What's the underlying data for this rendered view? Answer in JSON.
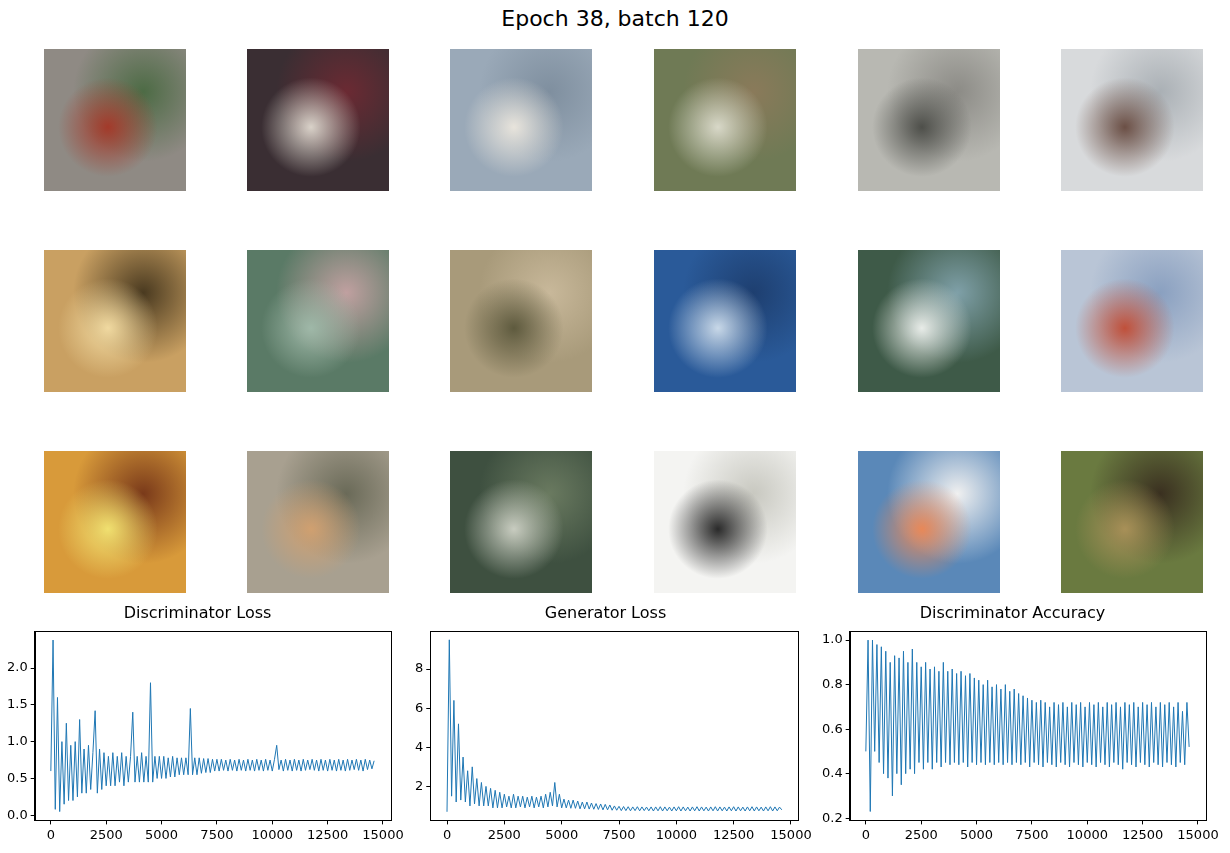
{
  "title": "Epoch 38, batch 120",
  "chart_data": [
    {
      "type": "line",
      "title": "Discriminator Loss",
      "grid": false,
      "color": "#1f77b4",
      "line_style": "solid",
      "x": [
        0,
        100,
        200,
        300,
        400,
        500,
        600,
        700,
        800,
        900,
        1000,
        1100,
        1200,
        1300,
        1400,
        1500,
        1600,
        1700,
        1800,
        1900,
        2000,
        2100,
        2200,
        2300,
        2400,
        2500,
        2600,
        2700,
        2800,
        2900,
        3000,
        3100,
        3200,
        3300,
        3400,
        3500,
        3600,
        3700,
        3800,
        3900,
        4000,
        4100,
        4200,
        4300,
        4400,
        4500,
        4600,
        4700,
        4800,
        4900,
        5000,
        5100,
        5200,
        5300,
        5400,
        5500,
        5600,
        5700,
        5800,
        5900,
        6000,
        6100,
        6200,
        6300,
        6400,
        6500,
        6600,
        6700,
        6800,
        6900,
        7000,
        7100,
        7200,
        7300,
        7400,
        7500,
        7600,
        7700,
        7800,
        7900,
        8000,
        8100,
        8200,
        8300,
        8400,
        8500,
        8600,
        8700,
        8800,
        8900,
        9000,
        9100,
        9200,
        9300,
        9400,
        9500,
        9600,
        9700,
        9800,
        9900,
        10000,
        10100,
        10200,
        10300,
        10400,
        10500,
        10600,
        10700,
        10800,
        10900,
        11000,
        11100,
        11200,
        11300,
        11400,
        11500,
        11600,
        11700,
        11800,
        11900,
        12000,
        12100,
        12200,
        12300,
        12400,
        12500,
        12600,
        12700,
        12800,
        12900,
        13000,
        13100,
        13200,
        13300,
        13400,
        13500,
        13600,
        13700,
        13800,
        13900,
        14000,
        14100,
        14200,
        14300,
        14400,
        14500,
        14600
      ],
      "values": [
        0.6,
        2.38,
        0.08,
        1.6,
        0.05,
        1.0,
        0.15,
        1.25,
        0.2,
        0.95,
        0.2,
        1.0,
        0.25,
        1.3,
        0.3,
        0.9,
        0.3,
        0.95,
        0.35,
        0.85,
        1.42,
        0.3,
        0.9,
        0.35,
        0.85,
        0.4,
        0.8,
        0.4,
        0.85,
        0.4,
        0.8,
        0.45,
        0.85,
        0.4,
        0.8,
        0.45,
        0.8,
        1.4,
        0.45,
        0.8,
        0.45,
        0.85,
        0.45,
        0.8,
        0.45,
        1.8,
        0.45,
        0.8,
        0.5,
        0.8,
        0.5,
        0.8,
        0.5,
        0.78,
        0.52,
        0.8,
        0.52,
        0.78,
        0.55,
        0.78,
        0.55,
        0.78,
        0.55,
        1.45,
        0.55,
        0.78,
        0.55,
        0.78,
        0.57,
        0.77,
        0.58,
        0.77,
        0.58,
        0.76,
        0.6,
        0.76,
        0.6,
        0.76,
        0.61,
        0.75,
        0.6,
        0.76,
        0.61,
        0.75,
        0.6,
        0.76,
        0.61,
        0.75,
        0.6,
        0.76,
        0.61,
        0.75,
        0.6,
        0.76,
        0.61,
        0.75,
        0.6,
        0.76,
        0.61,
        0.75,
        0.6,
        0.76,
        0.95,
        0.62,
        0.75,
        0.6,
        0.76,
        0.61,
        0.75,
        0.6,
        0.76,
        0.61,
        0.75,
        0.6,
        0.76,
        0.61,
        0.75,
        0.62,
        0.76,
        0.61,
        0.75,
        0.6,
        0.76,
        0.61,
        0.75,
        0.6,
        0.76,
        0.61,
        0.75,
        0.6,
        0.76,
        0.61,
        0.75,
        0.6,
        0.76,
        0.61,
        0.75,
        0.62,
        0.76,
        0.61,
        0.75,
        0.6,
        0.76,
        0.62,
        0.75,
        0.63,
        0.74
      ],
      "xlim": [
        -730,
        15330
      ],
      "xticks": [
        0,
        2500,
        5000,
        7500,
        10000,
        12500,
        15000
      ],
      "ylim": [
        -0.07,
        2.5
      ],
      "yticks": [
        {
          "value": 0,
          "label": "0.0"
        },
        {
          "value": 0.5,
          "label": "0.5"
        },
        {
          "value": 1,
          "label": "1.0"
        },
        {
          "value": 1.5,
          "label": "1.5"
        },
        {
          "value": 2,
          "label": "2.0"
        }
      ]
    },
    {
      "type": "line",
      "title": "Generator Loss",
      "grid": false,
      "color": "#1f77b4",
      "line_style": "solid",
      "x": [
        0,
        100,
        200,
        300,
        400,
        500,
        600,
        700,
        800,
        900,
        1000,
        1100,
        1200,
        1300,
        1400,
        1500,
        1600,
        1700,
        1800,
        1900,
        2000,
        2100,
        2200,
        2300,
        2400,
        2500,
        2600,
        2700,
        2800,
        2900,
        3000,
        3100,
        3200,
        3300,
        3400,
        3500,
        3600,
        3700,
        3800,
        3900,
        4000,
        4100,
        4200,
        4300,
        4400,
        4500,
        4600,
        4700,
        4800,
        4900,
        5000,
        5100,
        5200,
        5300,
        5400,
        5500,
        5600,
        5700,
        5800,
        5900,
        6000,
        6100,
        6200,
        6300,
        6400,
        6500,
        6600,
        6700,
        6800,
        6900,
        7000,
        7100,
        7200,
        7300,
        7400,
        7500,
        7600,
        7700,
        7800,
        7900,
        8000,
        8100,
        8200,
        8300,
        8400,
        8500,
        8600,
        8700,
        8800,
        8900,
        9000,
        9100,
        9200,
        9300,
        9400,
        9500,
        9600,
        9700,
        9800,
        9900,
        10000,
        10100,
        10200,
        10300,
        10400,
        10500,
        10600,
        10700,
        10800,
        10900,
        11000,
        11100,
        11200,
        11300,
        11400,
        11500,
        11600,
        11700,
        11800,
        11900,
        12000,
        12100,
        12200,
        12300,
        12400,
        12500,
        12600,
        12700,
        12800,
        12900,
        13000,
        13100,
        13200,
        13300,
        13400,
        13500,
        13600,
        13700,
        13800,
        13900,
        14000,
        14100,
        14200,
        14300,
        14400,
        14500,
        14600
      ],
      "values": [
        0.7,
        9.5,
        1.5,
        6.4,
        1.2,
        5.2,
        1.3,
        3.5,
        1.2,
        2.8,
        1.0,
        3.0,
        1.1,
        2.4,
        1.0,
        2.2,
        1.0,
        2.0,
        1.0,
        1.9,
        0.9,
        1.8,
        0.9,
        1.7,
        0.9,
        1.6,
        0.95,
        1.5,
        0.9,
        1.6,
        0.9,
        1.5,
        0.95,
        1.5,
        0.9,
        1.45,
        0.95,
        1.5,
        0.9,
        1.45,
        0.95,
        1.5,
        0.9,
        1.6,
        0.95,
        1.7,
        1.0,
        2.2,
        0.95,
        1.6,
        0.9,
        1.35,
        0.9,
        1.3,
        0.88,
        1.3,
        0.88,
        1.25,
        0.85,
        1.2,
        0.85,
        1.2,
        0.84,
        1.15,
        0.83,
        1.12,
        0.82,
        1.1,
        0.8,
        1.08,
        0.8,
        1.05,
        0.78,
        1.0,
        0.78,
        0.98,
        0.76,
        0.97,
        0.76,
        0.96,
        0.75,
        0.95,
        0.76,
        0.96,
        0.75,
        0.95,
        0.76,
        0.94,
        0.75,
        0.95,
        0.74,
        0.95,
        0.75,
        0.96,
        0.74,
        0.95,
        0.75,
        0.94,
        0.74,
        0.95,
        0.75,
        0.96,
        0.74,
        0.95,
        0.75,
        0.94,
        0.74,
        0.95,
        0.75,
        0.96,
        0.74,
        0.95,
        0.75,
        0.94,
        0.74,
        0.95,
        0.75,
        0.96,
        0.74,
        0.95,
        0.75,
        0.94,
        0.74,
        0.95,
        0.75,
        0.96,
        0.74,
        0.95,
        0.75,
        0.94,
        0.74,
        0.95,
        0.75,
        0.96,
        0.74,
        0.95,
        0.75,
        0.94,
        0.74,
        0.95,
        0.75,
        0.96,
        0.74,
        0.95,
        0.75,
        0.94,
        0.8
      ],
      "xlim": [
        -730,
        15330
      ],
      "xticks": [
        0,
        2500,
        5000,
        7500,
        10000,
        12500,
        15000
      ],
      "ylim": [
        0.26,
        9.94
      ],
      "yticks": [
        2,
        4,
        6,
        8
      ]
    },
    {
      "type": "line",
      "title": "Discriminator Accuracy",
      "grid": false,
      "color": "#1f77b4",
      "line_style": "solid",
      "x": [
        0,
        100,
        200,
        300,
        400,
        500,
        600,
        700,
        800,
        900,
        1000,
        1100,
        1200,
        1300,
        1400,
        1500,
        1600,
        1700,
        1800,
        1900,
        2000,
        2100,
        2200,
        2300,
        2400,
        2500,
        2600,
        2700,
        2800,
        2900,
        3000,
        3100,
        3200,
        3300,
        3400,
        3500,
        3600,
        3700,
        3800,
        3900,
        4000,
        4100,
        4200,
        4300,
        4400,
        4500,
        4600,
        4700,
        4800,
        4900,
        5000,
        5100,
        5200,
        5300,
        5400,
        5500,
        5600,
        5700,
        5800,
        5900,
        6000,
        6100,
        6200,
        6300,
        6400,
        6500,
        6600,
        6700,
        6800,
        6900,
        7000,
        7100,
        7200,
        7300,
        7400,
        7500,
        7600,
        7700,
        7800,
        7900,
        8000,
        8100,
        8200,
        8300,
        8400,
        8500,
        8600,
        8700,
        8800,
        8900,
        9000,
        9100,
        9200,
        9300,
        9400,
        9500,
        9600,
        9700,
        9800,
        9900,
        10000,
        10100,
        10200,
        10300,
        10400,
        10500,
        10600,
        10700,
        10800,
        10900,
        11000,
        11100,
        11200,
        11300,
        11400,
        11500,
        11600,
        11700,
        11800,
        11900,
        12000,
        12100,
        12200,
        12300,
        12400,
        12500,
        12600,
        12700,
        12800,
        12900,
        13000,
        13100,
        13200,
        13300,
        13400,
        13500,
        13600,
        13700,
        13800,
        13900,
        14000,
        14100,
        14200,
        14300,
        14400,
        14500,
        14600
      ],
      "values": [
        0.5,
        1.0,
        0.23,
        1.0,
        0.5,
        0.98,
        0.45,
        0.97,
        0.4,
        0.95,
        0.38,
        0.9,
        0.3,
        0.93,
        0.4,
        0.92,
        0.35,
        0.95,
        0.4,
        0.9,
        0.42,
        0.96,
        0.4,
        0.9,
        0.45,
        0.88,
        0.42,
        0.9,
        0.45,
        0.87,
        0.42,
        0.88,
        0.45,
        0.86,
        0.43,
        0.9,
        0.45,
        0.86,
        0.44,
        0.87,
        0.45,
        0.85,
        0.44,
        0.86,
        0.45,
        0.84,
        0.43,
        0.85,
        0.45,
        0.83,
        0.44,
        0.82,
        0.45,
        0.8,
        0.44,
        0.82,
        0.45,
        0.79,
        0.44,
        0.8,
        0.45,
        0.78,
        0.44,
        0.8,
        0.45,
        0.77,
        0.44,
        0.78,
        0.45,
        0.76,
        0.44,
        0.75,
        0.45,
        0.74,
        0.43,
        0.73,
        0.45,
        0.72,
        0.44,
        0.73,
        0.43,
        0.72,
        0.45,
        0.7,
        0.44,
        0.72,
        0.43,
        0.71,
        0.45,
        0.72,
        0.44,
        0.7,
        0.43,
        0.72,
        0.45,
        0.71,
        0.44,
        0.72,
        0.43,
        0.7,
        0.45,
        0.72,
        0.44,
        0.71,
        0.43,
        0.72,
        0.45,
        0.7,
        0.44,
        0.72,
        0.43,
        0.71,
        0.45,
        0.72,
        0.44,
        0.7,
        0.42,
        0.72,
        0.45,
        0.71,
        0.44,
        0.72,
        0.43,
        0.7,
        0.45,
        0.72,
        0.44,
        0.71,
        0.43,
        0.72,
        0.45,
        0.7,
        0.44,
        0.72,
        0.43,
        0.71,
        0.45,
        0.72,
        0.44,
        0.7,
        0.43,
        0.72,
        0.45,
        0.68,
        0.44,
        0.72,
        0.52
      ],
      "xlim": [
        -730,
        15330
      ],
      "xticks": [
        0,
        2500,
        5000,
        7500,
        10000,
        12500,
        15000
      ],
      "ylim": [
        0.19,
        1.04
      ],
      "yticks": [
        0.2,
        0.4,
        0.6,
        0.8,
        {
          "value": 1,
          "label": "1.0"
        }
      ]
    }
  ]
}
